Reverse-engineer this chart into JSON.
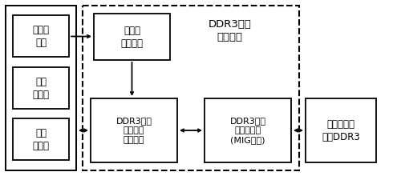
{
  "title_line1": "DDR3存储",
  "title_line2": "管理系统",
  "left_sub_boxes": [
    "图形生\n成写",
    "视频\n处理写",
    "叠加\n输出读"
  ],
  "frame_addr_box": "帧地址\n控制模块",
  "user_iface_box": "DDR3用户\n接口仲裁\n控制模块",
  "ddr3_ctrl_box": "DDR3存储\n器控制模块\n(MIG生成)",
  "ext_mem_box": "外部存储器\n两片DDR3",
  "bg_color": "#ffffff",
  "box_edge_color": "#000000",
  "dashed_box_color": "#000000",
  "text_color": "#000000",
  "arrow_color": "#000000",
  "fig_w": 5.0,
  "fig_h": 2.2,
  "dpi": 100
}
